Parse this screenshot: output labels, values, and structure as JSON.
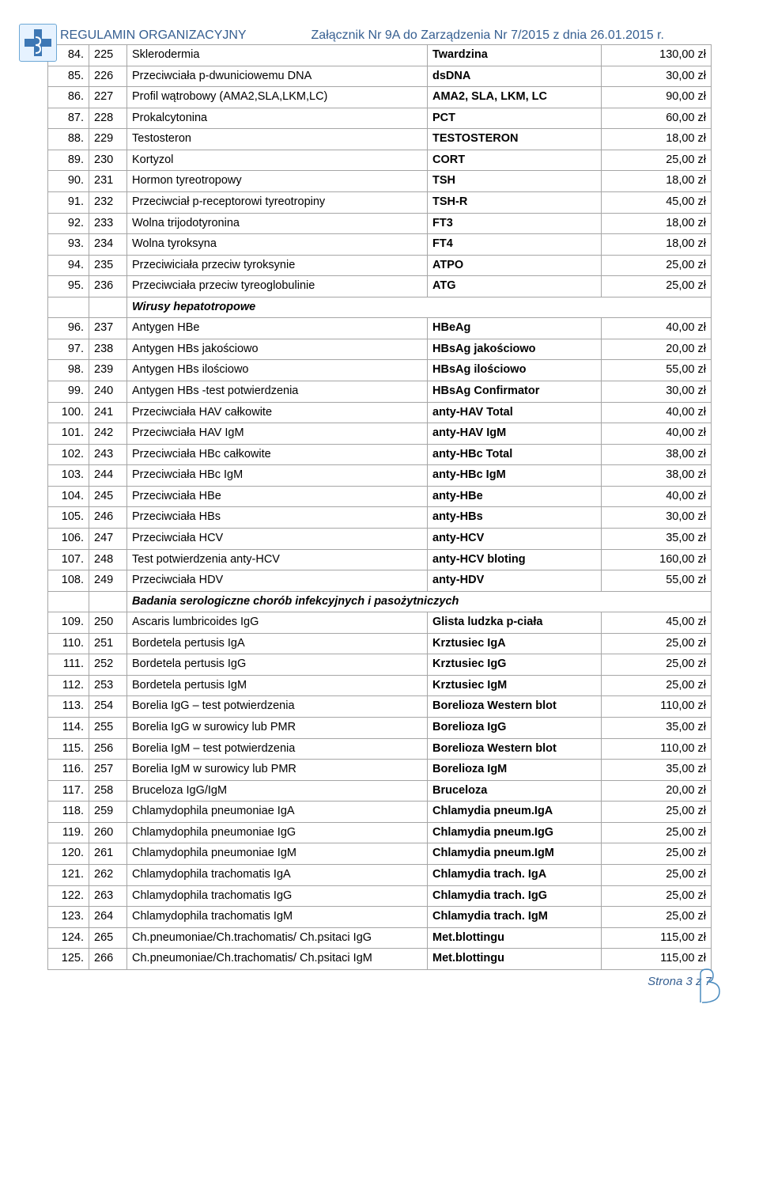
{
  "header": {
    "left": "REGULAMIN ORGANIZACYJNY",
    "right": "Załącznik Nr 9A do Zarządzenia Nr 7/2015 z dnia 26.01.2015 r."
  },
  "footer": {
    "page_label": "Strona",
    "page_cur": "3",
    "page_sep": "z",
    "page_total": "7"
  },
  "rows": [
    {
      "n": "84.",
      "c": "225",
      "name": "Sklerodermia",
      "abbr": "Twardzina",
      "price": "130,00 zł"
    },
    {
      "n": "85.",
      "c": "226",
      "name": "Przeciwciała p-dwuniciowemu DNA",
      "abbr": "dsDNA",
      "price": "30,00 zł"
    },
    {
      "n": "86.",
      "c": "227",
      "name": "Profil wątrobowy (AMA2,SLA,LKM,LC)",
      "abbr": "AMA2, SLA, LKM, LC",
      "price": "90,00 zł"
    },
    {
      "n": "87.",
      "c": "228",
      "name": "Prokalcytonina",
      "abbr": "PCT",
      "price": "60,00 zł"
    },
    {
      "n": "88.",
      "c": "229",
      "name": "Testosteron",
      "abbr": "TESTOSTERON",
      "price": "18,00 zł"
    },
    {
      "n": "89.",
      "c": "230",
      "name": "Kortyzol",
      "abbr": "CORT",
      "price": "25,00 zł"
    },
    {
      "n": "90.",
      "c": "231",
      "name": "Hormon tyreotropowy",
      "abbr": "TSH",
      "price": "18,00 zł"
    },
    {
      "n": "91.",
      "c": "232",
      "name": "Przeciwciał p-receptorowi tyreotropiny",
      "abbr": "TSH-R",
      "price": "45,00 zł"
    },
    {
      "n": "92.",
      "c": "233",
      "name": "Wolna trijodotyronina",
      "abbr": "FT3",
      "price": "18,00 zł"
    },
    {
      "n": "93.",
      "c": "234",
      "name": "Wolna tyroksyna",
      "abbr": "FT4",
      "price": "18,00 zł"
    },
    {
      "n": "94.",
      "c": "235",
      "name": "Przeciwiciała przeciw tyroksynie",
      "abbr": "ATPO",
      "price": "25,00 zł"
    },
    {
      "n": "95.",
      "c": "236",
      "name": "Przeciwciała przeciw tyreoglobulinie",
      "abbr": "ATG",
      "price": "25,00 zł"
    },
    {
      "section": "Wirusy hepatotropowe"
    },
    {
      "n": "96.",
      "c": "237",
      "name": "Antygen HBe",
      "abbr": "HBeAg",
      "price": "40,00 zł"
    },
    {
      "n": "97.",
      "c": "238",
      "name": "Antygen HBs jakościowo",
      "abbr": "HBsAg jakościowo",
      "price": "20,00 zł"
    },
    {
      "n": "98.",
      "c": "239",
      "name": "Antygen HBs ilościowo",
      "abbr": "HBsAg ilościowo",
      "price": "55,00 zł"
    },
    {
      "n": "99.",
      "c": "240",
      "name": "Antygen HBs -test potwierdzenia",
      "abbr": "HBsAg Confirmator",
      "price": "30,00 zł"
    },
    {
      "n": "100.",
      "c": "241",
      "name": "Przeciwciała HAV całkowite",
      "abbr": "anty-HAV Total",
      "price": "40,00 zł"
    },
    {
      "n": "101.",
      "c": "242",
      "name": "Przeciwciała HAV IgM",
      "abbr": "anty-HAV IgM",
      "price": "40,00 zł"
    },
    {
      "n": "102.",
      "c": "243",
      "name": "Przeciwciała HBc całkowite",
      "abbr": "anty-HBc Total",
      "price": "38,00 zł"
    },
    {
      "n": "103.",
      "c": "244",
      "name": "Przeciwciała HBc IgM",
      "abbr": "anty-HBc IgM",
      "price": "38,00 zł"
    },
    {
      "n": "104.",
      "c": "245",
      "name": "Przeciwciała HBe",
      "abbr": "anty-HBe",
      "price": "40,00 zł"
    },
    {
      "n": "105.",
      "c": "246",
      "name": "Przeciwciała HBs",
      "abbr": "anty-HBs",
      "price": "30,00 zł"
    },
    {
      "n": "106.",
      "c": "247",
      "name": "Przeciwciała HCV",
      "abbr": "anty-HCV",
      "price": "35,00 zł"
    },
    {
      "n": "107.",
      "c": "248",
      "name": "Test potwierdzenia anty-HCV",
      "abbr": "anty-HCV bloting",
      "price": "160,00 zł"
    },
    {
      "n": "108.",
      "c": "249",
      "name": "Przeciwciała HDV",
      "abbr": "anty-HDV",
      "price": "55,00 zł"
    },
    {
      "section": "Badania serologiczne chorób infekcyjnych i pasożytniczych"
    },
    {
      "n": "109.",
      "c": "250",
      "name": "Ascaris lumbricoides IgG",
      "abbr": "Glista ludzka p-ciała",
      "price": "45,00 zł"
    },
    {
      "n": "110.",
      "c": "251",
      "name": "Bordetela pertusis IgA",
      "abbr": "Krztusiec IgA",
      "price": "25,00 zł"
    },
    {
      "n": "111.",
      "c": "252",
      "name": "Bordetela pertusis IgG",
      "abbr": "Krztusiec IgG",
      "price": "25,00 zł"
    },
    {
      "n": "112.",
      "c": "253",
      "name": "Bordetela pertusis IgM",
      "abbr": "Krztusiec IgM",
      "price": "25,00 zł"
    },
    {
      "n": "113.",
      "c": "254",
      "name": "Borelia IgG – test potwierdzenia",
      "abbr": "Borelioza Western blot",
      "price": "110,00 zł"
    },
    {
      "n": "114.",
      "c": "255",
      "name": "Borelia IgG w surowicy lub PMR",
      "abbr": "Borelioza IgG",
      "price": "35,00 zł"
    },
    {
      "n": "115.",
      "c": "256",
      "name": "Borelia IgM – test potwierdzenia",
      "abbr": "Borelioza Western blot",
      "price": "110,00 zł"
    },
    {
      "n": "116.",
      "c": "257",
      "name": "Borelia IgM w surowicy lub PMR",
      "abbr": "Borelioza IgM",
      "price": "35,00 zł"
    },
    {
      "n": "117.",
      "c": "258",
      "name": "Bruceloza IgG/IgM",
      "abbr": "Bruceloza",
      "price": "20,00 zł"
    },
    {
      "n": "118.",
      "c": "259",
      "name": "Chlamydophila pneumoniae IgA",
      "abbr": "Chlamydia pneum.IgA",
      "price": "25,00 zł"
    },
    {
      "n": "119.",
      "c": "260",
      "name": "Chlamydophila pneumoniae IgG",
      "abbr": "Chlamydia pneum.IgG",
      "price": "25,00 zł"
    },
    {
      "n": "120.",
      "c": "261",
      "name": "Chlamydophila pneumoniae IgM",
      "abbr": "Chlamydia pneum.IgM",
      "price": "25,00 zł"
    },
    {
      "n": "121.",
      "c": "262",
      "name": "Chlamydophila trachomatis IgA",
      "abbr": "Chlamydia trach. IgA",
      "price": "25,00 zł"
    },
    {
      "n": "122.",
      "c": "263",
      "name": "Chlamydophila trachomatis IgG",
      "abbr": "Chlamydia trach. IgG",
      "price": "25,00 zł"
    },
    {
      "n": "123.",
      "c": "264",
      "name": "Chlamydophila trachomatis IgM",
      "abbr": "Chlamydia trach. IgM",
      "price": "25,00 zł"
    },
    {
      "n": "124.",
      "c": "265",
      "name": "Ch.pneumoniae/Ch.trachomatis/ Ch.psitaci IgG",
      "abbr": "Met.blottingu",
      "price": "115,00 zł"
    },
    {
      "n": "125.",
      "c": "266",
      "name": "Ch.pneumoniae/Ch.trachomatis/ Ch.psitaci IgM",
      "abbr": "Met.blottingu",
      "price": "115,00 zł"
    }
  ]
}
